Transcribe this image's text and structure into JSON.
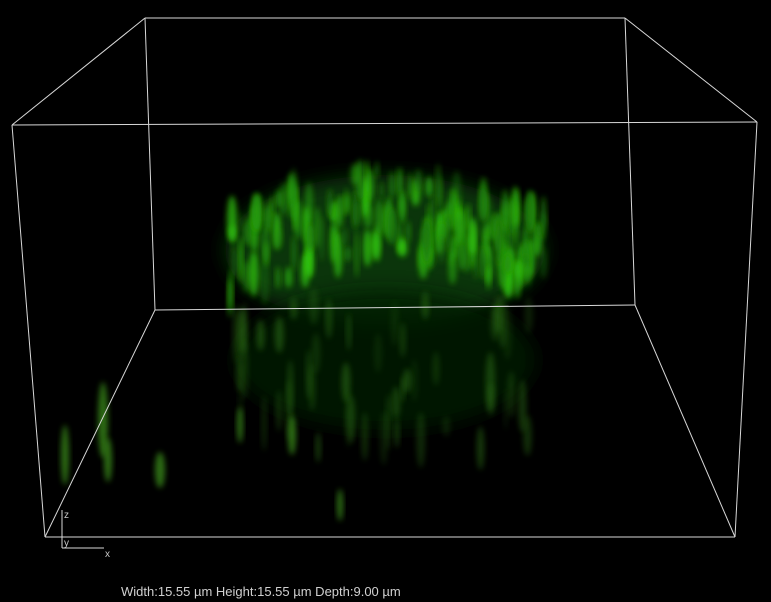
{
  "axes": {
    "z": "z",
    "y": "y",
    "x": "x"
  },
  "dimensions": "Width:15.55 µm Height:15.55 µm Depth:9.00 µm"
}
